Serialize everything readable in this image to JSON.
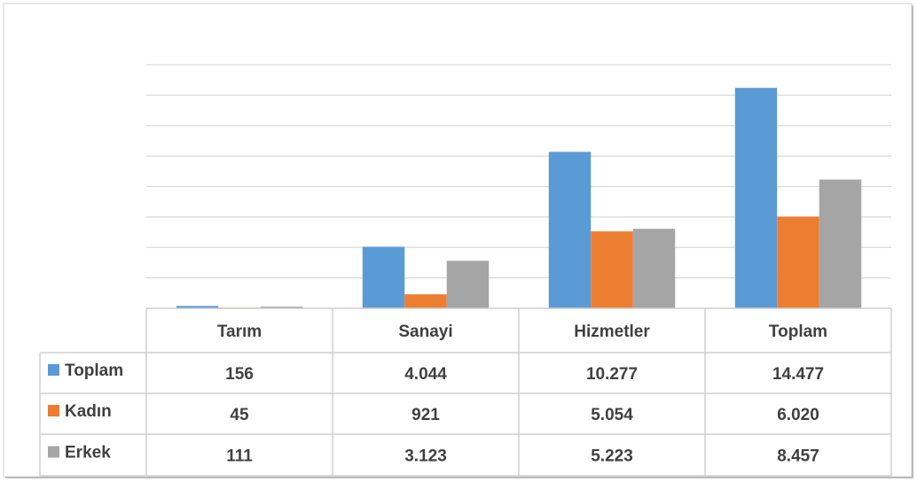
{
  "chart_data": {
    "type": "bar",
    "categories": [
      "Tarım",
      "Sanayi",
      "Hizmetler",
      "Toplam"
    ],
    "series": [
      {
        "name": "Toplam",
        "color": "#5b9bd5",
        "values": [
          156,
          4044,
          10277,
          14477
        ],
        "value_labels": [
          "156",
          "4.044",
          "10.277",
          "14.477"
        ]
      },
      {
        "name": "Kadın",
        "color": "#ed7d31",
        "values": [
          45,
          921,
          5054,
          6020
        ],
        "value_labels": [
          "45",
          "921",
          "5.054",
          "6.020"
        ]
      },
      {
        "name": "Erkek",
        "color": "#a5a5a5",
        "values": [
          111,
          3123,
          5223,
          8457
        ],
        "value_labels": [
          "111",
          "3.123",
          "5.223",
          "8.457"
        ]
      }
    ],
    "ylim": [
      0,
      16000
    ],
    "yticks": [
      0,
      2000,
      4000,
      6000,
      8000,
      10000,
      12000,
      14000,
      16000
    ],
    "grid": true
  }
}
